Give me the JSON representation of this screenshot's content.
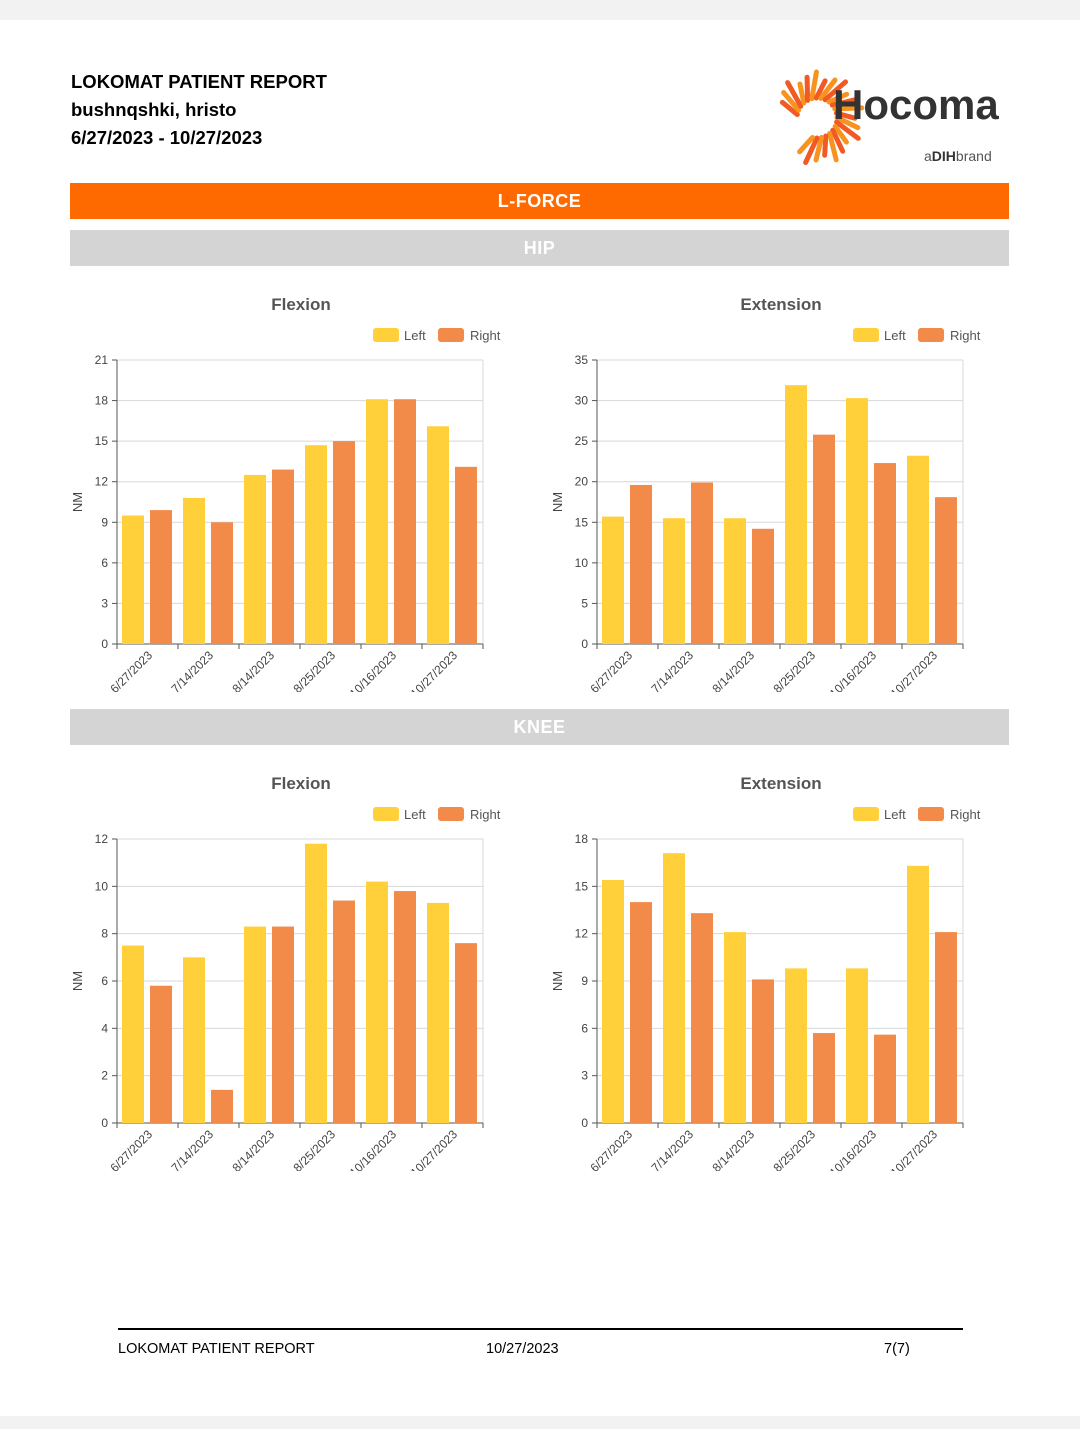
{
  "header": {
    "title": "LOKOMAT PATIENT REPORT",
    "patient": "bushnqshki, hristo",
    "date_range": "6/27/2023 - 10/27/2023"
  },
  "logo": {
    "brand": "Hocoma",
    "tagline_a": "a",
    "tagline_dih": "DIH",
    "tagline_brand": "brand",
    "colors": [
      "#f15a24",
      "#f7931e"
    ]
  },
  "sections": {
    "main": "L-FORCE",
    "hip": "HIP",
    "knee": "KNEE"
  },
  "colors": {
    "left": "#ffd03a",
    "right": "#f28a4a",
    "orange_band": "#ff6a00",
    "grey_band": "#d4d4d4"
  },
  "chart_data": [
    {
      "type": "bar",
      "title": "Flexion",
      "ylabel": "NM",
      "section": "HIP",
      "categories": [
        "6/27/2023",
        "7/14/2023",
        "8/14/2023",
        "8/25/2023",
        "10/16/2023",
        "10/27/2023"
      ],
      "ylim": [
        0,
        21
      ],
      "yticks": [
        0,
        3,
        6,
        9,
        12,
        15,
        18,
        21
      ],
      "series": [
        {
          "name": "Left",
          "values": [
            9.5,
            10.8,
            12.5,
            14.7,
            18.1,
            16.1
          ]
        },
        {
          "name": "Right",
          "values": [
            9.9,
            9.0,
            12.9,
            15.0,
            18.1,
            13.1
          ]
        }
      ],
      "legend": "top-right",
      "grid": true
    },
    {
      "type": "bar",
      "title": "Extension",
      "ylabel": "NM",
      "section": "HIP",
      "categories": [
        "6/27/2023",
        "7/14/2023",
        "8/14/2023",
        "8/25/2023",
        "10/16/2023",
        "10/27/2023"
      ],
      "ylim": [
        0,
        35
      ],
      "yticks": [
        0,
        5,
        10,
        15,
        20,
        25,
        30,
        35
      ],
      "series": [
        {
          "name": "Left",
          "values": [
            15.7,
            15.5,
            15.5,
            31.9,
            30.3,
            23.2
          ]
        },
        {
          "name": "Right",
          "values": [
            19.6,
            19.9,
            14.2,
            25.8,
            22.3,
            18.1
          ]
        }
      ],
      "legend": "top-right",
      "grid": true
    },
    {
      "type": "bar",
      "title": "Flexion",
      "ylabel": "NM",
      "section": "KNEE",
      "categories": [
        "6/27/2023",
        "7/14/2023",
        "8/14/2023",
        "8/25/2023",
        "10/16/2023",
        "10/27/2023"
      ],
      "ylim": [
        0,
        12
      ],
      "yticks": [
        0,
        2,
        4,
        6,
        8,
        10,
        12
      ],
      "series": [
        {
          "name": "Left",
          "values": [
            7.5,
            7.0,
            8.3,
            11.8,
            10.2,
            9.3
          ]
        },
        {
          "name": "Right",
          "values": [
            5.8,
            1.4,
            8.3,
            9.4,
            9.8,
            7.6
          ]
        }
      ],
      "legend": "top-right",
      "grid": true
    },
    {
      "type": "bar",
      "title": "Extension",
      "ylabel": "NM",
      "section": "KNEE",
      "categories": [
        "6/27/2023",
        "7/14/2023",
        "8/14/2023",
        "8/25/2023",
        "10/16/2023",
        "10/27/2023"
      ],
      "ylim": [
        0,
        18
      ],
      "yticks": [
        0,
        3,
        6,
        9,
        12,
        15,
        18
      ],
      "series": [
        {
          "name": "Left",
          "values": [
            15.4,
            17.1,
            12.1,
            9.8,
            9.8,
            16.3
          ]
        },
        {
          "name": "Right",
          "values": [
            14.0,
            13.3,
            9.1,
            5.7,
            5.6,
            12.1
          ]
        }
      ],
      "legend": "top-right",
      "grid": true
    }
  ],
  "footer": {
    "title": "LOKOMAT PATIENT REPORT",
    "date": "10/27/2023",
    "page": "7(7)"
  }
}
